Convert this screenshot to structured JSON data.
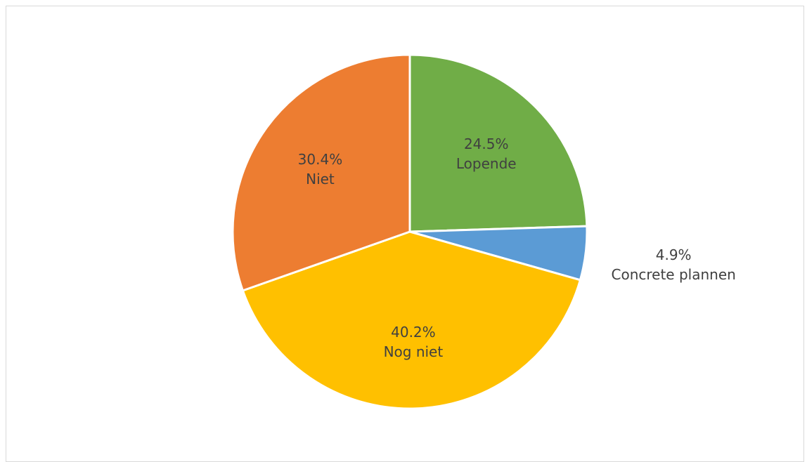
{
  "chart_data": {
    "type": "pie",
    "title": "",
    "slices": [
      {
        "label": "Lopende",
        "value": 24.5,
        "display": "24.5%",
        "color": "#70ad47"
      },
      {
        "label": "Concrete plannen",
        "value": 4.9,
        "display": "4.9%",
        "color": "#5b9bd5"
      },
      {
        "label": "Nog niet",
        "value": 40.2,
        "display": "40.2%",
        "color": "#ffc000"
      },
      {
        "label": "Niet",
        "value": 30.4,
        "display": "30.4%",
        "color": "#ed7d31"
      }
    ],
    "start_angle": "top (12 o'clock)",
    "direction": "clockwise",
    "legend": "none",
    "data_labels": "value and category"
  }
}
